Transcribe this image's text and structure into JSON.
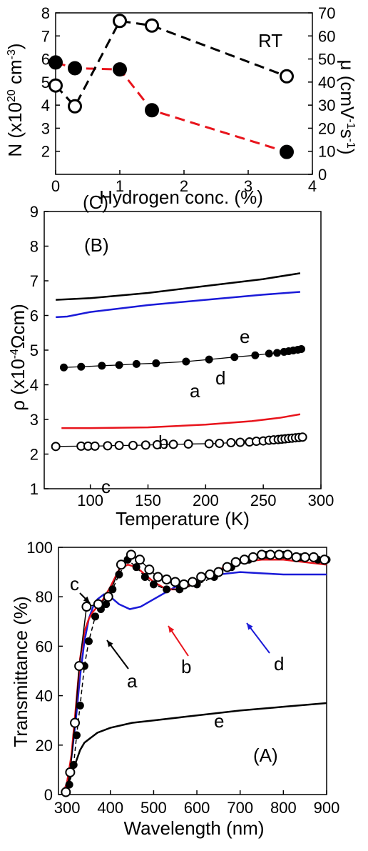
{
  "chart_data": [
    {
      "panel": "(C)",
      "type": "scatter",
      "annotation": "RT",
      "xlabel": "Hydrogen conc. (%)",
      "ylabel": "N (x10^20 cm^-3)",
      "y2label": "μ (cmV^-1s^-1)",
      "xlim": [
        0,
        4
      ],
      "ylim": [
        1,
        8
      ],
      "y2lim": [
        0,
        70
      ],
      "xticks": [
        "0",
        "1",
        "2",
        "3",
        "4"
      ],
      "yticks": [
        "2",
        "3",
        "4",
        "5",
        "6",
        "7",
        "8"
      ],
      "y2ticks": [
        "0",
        "10",
        "20",
        "30",
        "40",
        "50",
        "60",
        "70"
      ],
      "series": [
        {
          "axis": "left",
          "marker": "filled-circle",
          "line": "dashed",
          "color": "#e8141c",
          "x": [
            0,
            0.3,
            1.0,
            1.5,
            3.6
          ],
          "y": [
            5.85,
            5.6,
            5.55,
            3.78,
            1.97
          ]
        },
        {
          "axis": "right",
          "marker": "open-circle",
          "line": "dashed",
          "color": "#000000",
          "x": [
            0,
            0.3,
            1.0,
            1.5,
            3.6
          ],
          "y": [
            38.5,
            29.5,
            66.5,
            64.5,
            42.5
          ]
        }
      ]
    },
    {
      "panel": "(B)",
      "type": "line",
      "xlabel": "Temperature (K)",
      "ylabel": "ρ (x10^-4 Ωcm)",
      "xlim": [
        60,
        300
      ],
      "ylim": [
        1,
        9
      ],
      "xticks": [
        "100",
        "150",
        "200",
        "250",
        "300"
      ],
      "yticks": [
        "1",
        "2",
        "3",
        "4",
        "5",
        "6",
        "7",
        "8",
        "9"
      ],
      "curve_labels": [
        "e",
        "d",
        "a",
        "b",
        "c"
      ],
      "series": [
        {
          "label": "e",
          "color": "#000000",
          "marker": "none",
          "x": [
            70,
            100,
            150,
            200,
            250,
            282
          ],
          "y": [
            6.45,
            6.5,
            6.65,
            6.85,
            7.05,
            7.22
          ]
        },
        {
          "label": "d",
          "color": "#1a1ad8",
          "marker": "none",
          "x": [
            70,
            80,
            100,
            150,
            200,
            250,
            282
          ],
          "y": [
            5.95,
            5.97,
            6.1,
            6.3,
            6.45,
            6.6,
            6.68
          ]
        },
        {
          "label": "a",
          "color": "#000000",
          "marker": "filled-circle",
          "x": [
            77,
            92,
            110,
            125,
            140,
            157,
            183,
            203,
            225,
            243,
            255,
            262,
            268,
            272,
            276,
            280,
            283
          ],
          "y": [
            4.5,
            4.52,
            4.55,
            4.57,
            4.6,
            4.62,
            4.67,
            4.73,
            4.8,
            4.85,
            4.9,
            4.92,
            4.95,
            4.97,
            4.99,
            5.01,
            5.03
          ]
        },
        {
          "label": "b",
          "color": "#e8141c",
          "marker": "none",
          "x": [
            75,
            100,
            150,
            200,
            240,
            265,
            282
          ],
          "y": [
            2.75,
            2.75,
            2.77,
            2.85,
            2.95,
            3.05,
            3.15
          ]
        },
        {
          "label": "c",
          "color": "#000000",
          "marker": "open-circle",
          "x": [
            70,
            92,
            98,
            104,
            115,
            125,
            137,
            148,
            158,
            172,
            185,
            203,
            212,
            222,
            230,
            238,
            244,
            250,
            255,
            259,
            263,
            266,
            269,
            272,
            275,
            278,
            281,
            284
          ],
          "y": [
            2.22,
            2.23,
            2.23,
            2.23,
            2.24,
            2.25,
            2.25,
            2.26,
            2.27,
            2.28,
            2.29,
            2.3,
            2.31,
            2.33,
            2.34,
            2.35,
            2.37,
            2.38,
            2.4,
            2.41,
            2.42,
            2.43,
            2.44,
            2.45,
            2.46,
            2.47,
            2.48,
            2.49
          ]
        }
      ]
    },
    {
      "panel": "(A)",
      "type": "line",
      "xlabel": "Wavelength (nm)",
      "ylabel": "Transmittance (%)",
      "xlim": [
        280,
        900
      ],
      "ylim": [
        0,
        100
      ],
      "xticks": [
        "300",
        "400",
        "500",
        "600",
        "700",
        "800",
        "900"
      ],
      "yticks": [
        "0",
        "20",
        "40",
        "60",
        "80",
        "100"
      ],
      "curve_labels": [
        "c",
        "a",
        "b",
        "d",
        "e"
      ],
      "series": [
        {
          "label": "e",
          "color": "#000000",
          "marker": "none",
          "x": [
            290,
            300,
            310,
            320,
            330,
            340,
            355,
            370,
            400,
            450,
            500,
            600,
            700,
            800,
            900
          ],
          "y": [
            0,
            3,
            8,
            13,
            18,
            21,
            23,
            25,
            27,
            29,
            30,
            32,
            34,
            35.5,
            37
          ]
        },
        {
          "label": "d",
          "color": "#1a1ad8",
          "marker": "none",
          "x": [
            290,
            300,
            310,
            320,
            330,
            340,
            350,
            360,
            370,
            385,
            400,
            420,
            445,
            470,
            500,
            550,
            600,
            650,
            700,
            750,
            800,
            850,
            900
          ],
          "y": [
            0,
            5,
            15,
            30,
            48,
            62,
            71,
            76,
            79,
            81,
            80,
            77,
            75,
            76,
            79,
            84,
            87,
            89,
            90,
            89.5,
            89,
            89,
            89
          ]
        },
        {
          "label": "b",
          "color": "#e8141c",
          "marker": "none",
          "x": [
            290,
            300,
            310,
            320,
            330,
            340,
            350,
            360,
            380,
            400,
            420,
            440,
            460,
            480,
            500,
            530,
            560,
            600,
            650,
            700,
            750,
            800,
            850,
            900
          ],
          "y": [
            0,
            5,
            16,
            35,
            55,
            66,
            71,
            74,
            78,
            84,
            91,
            93,
            92,
            89,
            86,
            83,
            83,
            86,
            91,
            94,
            95,
            95,
            94,
            93
          ]
        },
        {
          "label": "a",
          "color": "#000000",
          "marker": "filled-circle",
          "x": [
            295,
            305,
            315,
            322,
            330,
            340,
            350,
            365,
            378,
            390,
            405,
            420,
            440,
            460,
            480,
            500,
            530,
            560,
            600,
            640,
            680,
            720,
            760,
            800,
            840,
            880,
            900
          ],
          "y": [
            1,
            4,
            12,
            24,
            36,
            52,
            62,
            72,
            75,
            77,
            83,
            89,
            95,
            92,
            88,
            85,
            83,
            83,
            85,
            88,
            92,
            95,
            97,
            97,
            96,
            95,
            95
          ]
        },
        {
          "label": "c",
          "color": "#000000",
          "marker": "open-circle",
          "x": [
            297,
            307,
            318,
            328,
            345,
            372,
            395,
            425,
            448,
            468,
            490,
            510,
            530,
            550,
            570,
            590,
            610,
            630,
            650,
            670,
            690,
            710,
            730,
            750,
            770,
            790,
            810,
            830,
            850,
            870,
            895
          ],
          "y": [
            1,
            9,
            29,
            52,
            76,
            77,
            80,
            93,
            97,
            95,
            91,
            88,
            87,
            86,
            85,
            86,
            88,
            89,
            90,
            92,
            94,
            95,
            96,
            97,
            97,
            97,
            97,
            96,
            96,
            96,
            95
          ]
        }
      ]
    }
  ]
}
